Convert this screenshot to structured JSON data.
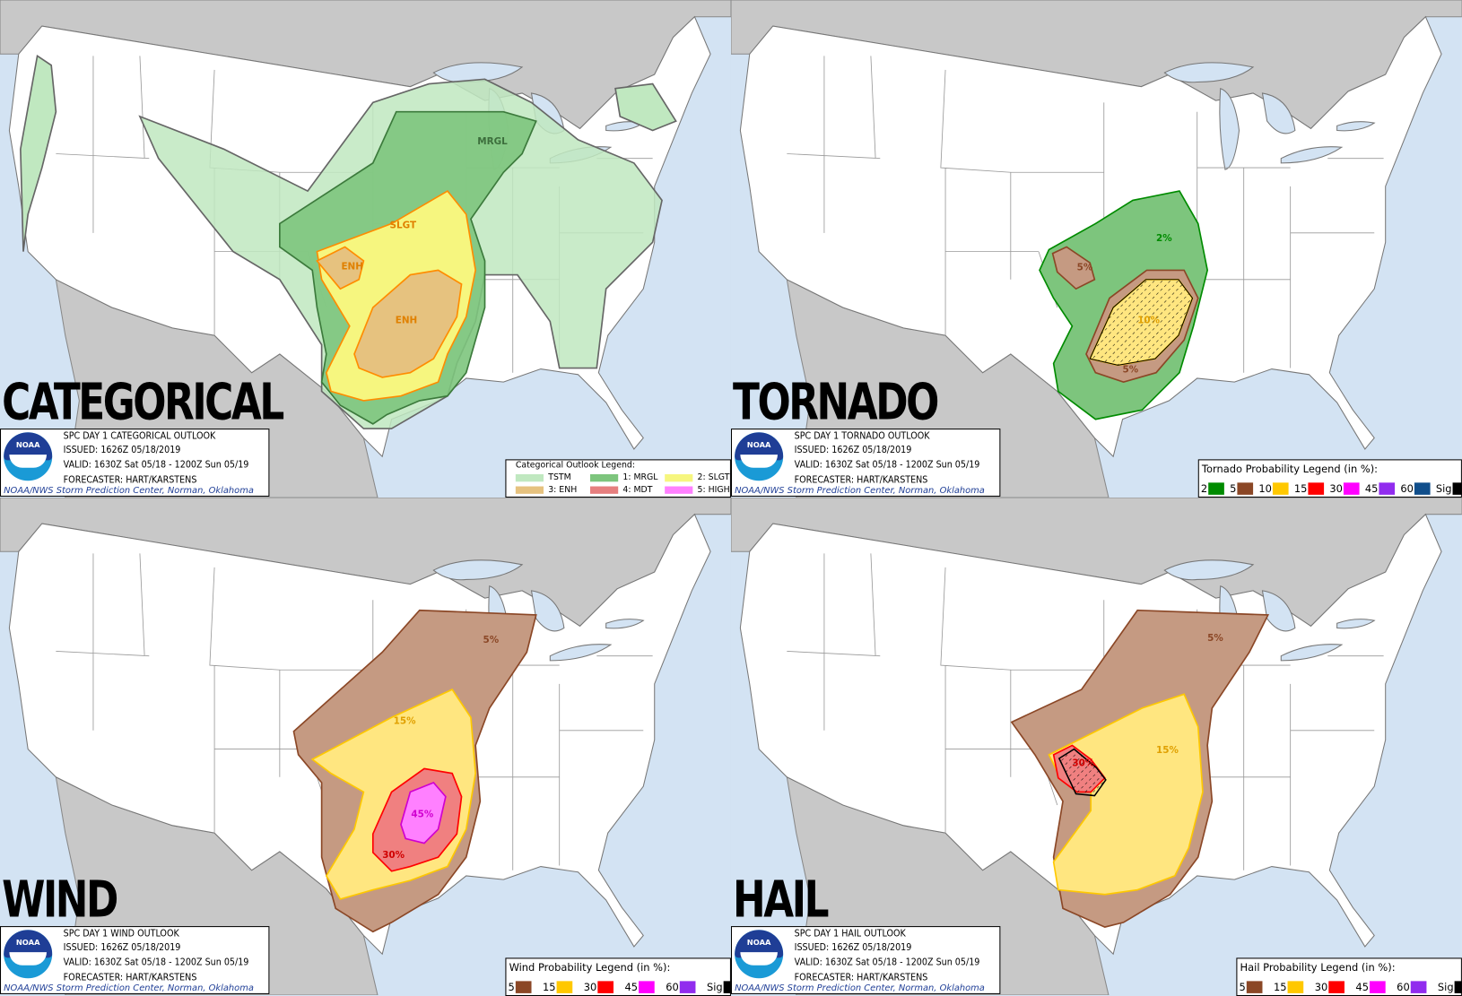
{
  "colors": {
    "water": "#d3e3f3",
    "foreign_land": "#c8c8c8",
    "us_land": "#ffffff"
  },
  "panels": [
    {
      "id": "categorical",
      "big_title": "CATEGORICAL",
      "logo_text": "NOAA",
      "info": {
        "title": "SPC DAY 1 CATEGORICAL OUTLOOK",
        "issued": "ISSUED: 1626Z 05/18/2019",
        "valid": "VALID: 1630Z Sat 05/18 - 1200Z Sun 05/19",
        "forecaster": "FORECASTER: HART/KARSTENS",
        "footer": "NOAA/NWS Storm Prediction Center, Norman, Oklahoma"
      },
      "legend": {
        "title": "Categorical Outlook Legend:",
        "items": [
          {
            "label": "TSTM",
            "color": "#c0e8c0"
          },
          {
            "label": "1: MRGL",
            "color": "#7dc57d"
          },
          {
            "label": "2: SLGT",
            "color": "#f6f67f"
          },
          {
            "label": "3: ENH",
            "color": "#e6c27f"
          },
          {
            "label": "4: MDT",
            "color": "#e67f7f"
          },
          {
            "label": "5: HIGH",
            "color": "#ff80ff"
          }
        ]
      },
      "risk_labels": [
        "MRGL",
        "SLGT",
        "ENH",
        "ENH"
      ]
    },
    {
      "id": "tornado",
      "big_title": "TORNADO",
      "logo_text": "NOAA",
      "info": {
        "title": "SPC DAY 1 TORNADO OUTLOOK",
        "issued": "ISSUED: 1626Z 05/18/2019",
        "valid": "VALID: 1630Z Sat 05/18 - 1200Z Sun 05/19",
        "forecaster": "FORECASTER: HART/KARSTENS",
        "footer": "NOAA/NWS Storm Prediction Center, Norman, Oklahoma"
      },
      "legend": {
        "title": "Tornado Probability Legend (in %):",
        "items": [
          {
            "label": "2",
            "color": "#008b00"
          },
          {
            "label": "5",
            "color": "#8b4726"
          },
          {
            "label": "10",
            "color": "#ffc800"
          },
          {
            "label": "15",
            "color": "#ff0000"
          },
          {
            "label": "30",
            "color": "#ff00ff"
          },
          {
            "label": "45",
            "color": "#912cee"
          },
          {
            "label": "60",
            "color": "#104e8b"
          },
          {
            "label": "Sig",
            "color": "#000000"
          }
        ]
      },
      "risk_labels": [
        "2%",
        "5%",
        "10%",
        "5%"
      ]
    },
    {
      "id": "wind",
      "big_title": "WIND",
      "logo_text": "NOAA",
      "info": {
        "title": "SPC DAY 1 WIND OUTLOOK",
        "issued": "ISSUED: 1626Z 05/18/2019",
        "valid": "VALID: 1630Z Sat 05/18 - 1200Z Sun 05/19",
        "forecaster": "FORECASTER: HART/KARSTENS",
        "footer": "NOAA/NWS Storm Prediction Center, Norman, Oklahoma"
      },
      "legend": {
        "title": "Wind Probability Legend (in %):",
        "items": [
          {
            "label": "5",
            "color": "#8b4726"
          },
          {
            "label": "15",
            "color": "#ffc800"
          },
          {
            "label": "30",
            "color": "#ff0000"
          },
          {
            "label": "45",
            "color": "#ff00ff"
          },
          {
            "label": "60",
            "color": "#912cee"
          },
          {
            "label": "Sig",
            "color": "#000000"
          }
        ]
      },
      "risk_labels": [
        "5%",
        "15%",
        "30%",
        "45%"
      ]
    },
    {
      "id": "hail",
      "big_title": "HAIL",
      "logo_text": "NOAA",
      "info": {
        "title": "SPC DAY 1 HAIL OUTLOOK",
        "issued": "ISSUED: 1626Z 05/18/2019",
        "valid": "VALID: 1630Z Sat 05/18 - 1200Z Sun 05/19",
        "forecaster": "FORECASTER: HART/KARSTENS",
        "footer": "NOAA/NWS Storm Prediction Center, Norman, Oklahoma"
      },
      "legend": {
        "title": "Hail Probability Legend (in %):",
        "items": [
          {
            "label": "5",
            "color": "#8b4726"
          },
          {
            "label": "15",
            "color": "#ffc800"
          },
          {
            "label": "30",
            "color": "#ff0000"
          },
          {
            "label": "45",
            "color": "#ff00ff"
          },
          {
            "label": "60",
            "color": "#912cee"
          },
          {
            "label": "Sig",
            "color": "#000000"
          }
        ]
      },
      "risk_labels": [
        "5%",
        "15%",
        "30%"
      ]
    }
  ]
}
